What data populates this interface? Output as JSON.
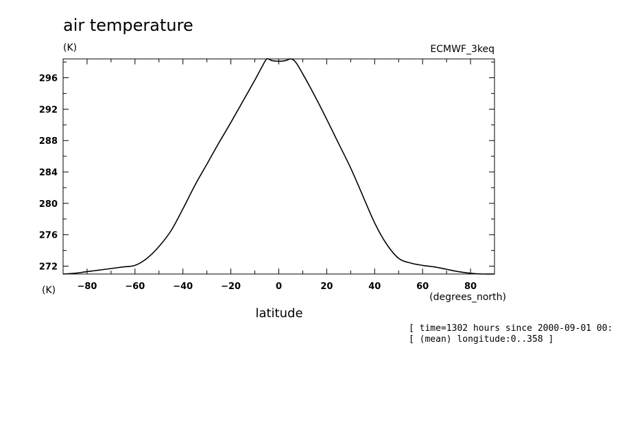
{
  "chart_data": {
    "type": "line",
    "title": "air temperature",
    "units": "(K)",
    "dataset": "ECMWF_3keq",
    "ylabel_bottom": "(K)",
    "xlabel": "latitude",
    "xunits": "(degrees_north)",
    "annotations": [
      "[ time=1302 hours since 2000-09-01 00:",
      "[ (mean) longitude:0..358 ]"
    ],
    "xlim": [
      -90,
      90
    ],
    "ylim": [
      271,
      298.4
    ],
    "xticks": [
      -80,
      -60,
      -40,
      -20,
      0,
      20,
      40,
      60,
      80
    ],
    "yticks": [
      272,
      276,
      280,
      284,
      288,
      292,
      296
    ],
    "x": [
      -90,
      -85,
      -80,
      -75,
      -70,
      -65,
      -60,
      -55,
      -50,
      -45,
      -40,
      -35,
      -30,
      -25,
      -20,
      -15,
      -10,
      -7,
      -5,
      -3,
      0,
      3,
      5,
      7,
      10,
      15,
      20,
      25,
      30,
      35,
      40,
      45,
      50,
      55,
      60,
      65,
      70,
      75,
      80,
      85,
      90
    ],
    "series": [
      {
        "values": [
          271.0,
          271.1,
          271.3,
          271.5,
          271.7,
          271.9,
          272.1,
          273.0,
          274.5,
          276.5,
          279.3,
          282.3,
          285.0,
          287.7,
          290.3,
          293.0,
          295.7,
          297.4,
          298.4,
          298.2,
          298.1,
          298.2,
          298.4,
          298.0,
          296.5,
          293.7,
          290.7,
          287.6,
          284.5,
          281.0,
          277.5,
          274.8,
          273.0,
          272.4,
          272.1,
          271.9,
          271.6,
          271.3,
          271.1,
          271.0,
          271.0
        ]
      }
    ]
  }
}
